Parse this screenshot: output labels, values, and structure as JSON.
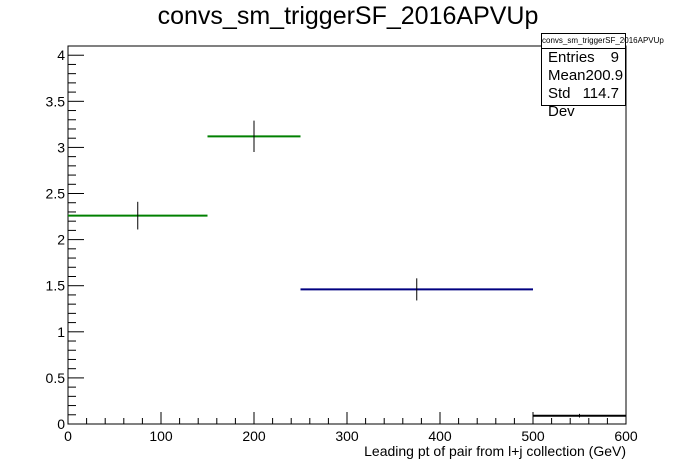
{
  "chart_data": {
    "type": "histogram",
    "title": "convs_sm_triggerSF_2016APVUp",
    "xlabel": "Leading pt of pair from l+j collection (GeV)",
    "ylabel": "",
    "xlim": [
      0,
      600
    ],
    "ylim": [
      0,
      4.1
    ],
    "x_ticks": [
      "0",
      "100",
      "200",
      "300",
      "400",
      "500",
      "600"
    ],
    "y_ticks": [
      "0",
      "0.5",
      "1",
      "1.5",
      "2",
      "2.5",
      "3",
      "3.5",
      "4"
    ],
    "bins": [
      {
        "xlow": 0,
        "xhigh": 150,
        "value": 2.26,
        "error": 0.15,
        "color": "#008000"
      },
      {
        "xlow": 150,
        "xhigh": 250,
        "value": 3.12,
        "error": 0.17,
        "color": "#008000"
      },
      {
        "xlow": 250,
        "xhigh": 500,
        "value": 1.46,
        "error": 0.12,
        "color": "#000080"
      },
      {
        "xlow": 500,
        "xhigh": 600,
        "value": 0.09,
        "error": 0.02,
        "color": "#000000"
      }
    ],
    "legend": "none",
    "grid": false
  },
  "stats": {
    "title": "convs_sm_triggerSF_2016APVUp",
    "rows": [
      {
        "label": "Entries",
        "value": "9"
      },
      {
        "label": "Mean",
        "value": "200.9"
      },
      {
        "label": "Std Dev",
        "value": "114.7"
      }
    ]
  }
}
